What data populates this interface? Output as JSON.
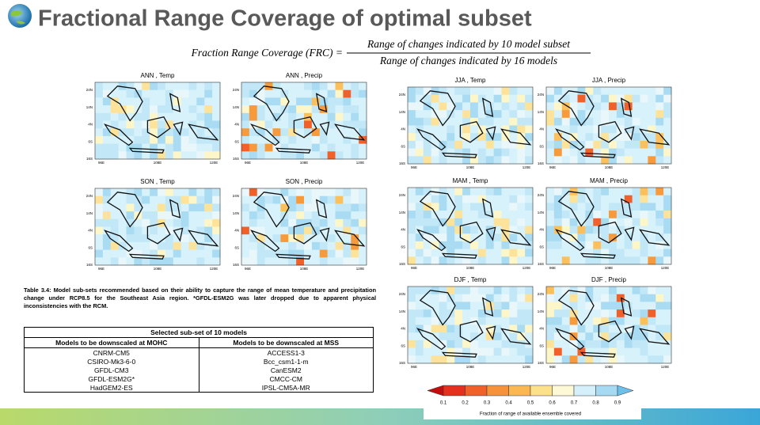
{
  "header": {
    "title": "Fractional Range Coverage of optimal subset"
  },
  "formula": {
    "lhs": "Fraction Range Coverage (FRC) =",
    "numerator": "Range of changes indicated by 10 model subset",
    "denominator": "Range of changes indicated by 16 models"
  },
  "panels": [
    {
      "title": "ANN , Temp"
    },
    {
      "title": "ANN , Precip"
    },
    {
      "title": "SON , Temp"
    },
    {
      "title": "SON , Precip"
    },
    {
      "title": "JJA , Temp"
    },
    {
      "title": "JJA , Precip"
    },
    {
      "title": "MAM , Temp"
    },
    {
      "title": "MAM , Precip"
    },
    {
      "title": "DJF , Temp"
    },
    {
      "title": "DJF , Precip"
    }
  ],
  "lat_labels": [
    "24N",
    "14N",
    "4N",
    "6S",
    "16S"
  ],
  "lon_labels": [
    "96E",
    "108E",
    "120E"
  ],
  "caption": "Table 3.4: Model sub-sets recommended based on their ability to capture the range of mean temperature and precipitation change under RCP8.5 for the Southeast Asia region. *GFDL-ESM2G was later dropped due to apparent physical inconsistencies with the RCM.",
  "table": {
    "title": "Selected sub-set of 10 models",
    "headers": [
      "Models to be downscaled at MOHC",
      "Models to be downscaled at MSS"
    ],
    "rows": [
      [
        "CNRM-CM5",
        "ACCESS1-3"
      ],
      [
        "CSIRO-Mk3-6-0",
        "Bcc_csm1-1-m"
      ],
      [
        "GFDL-CM3",
        "CanESM2"
      ],
      [
        "GFDL-ESM2G*",
        "CMCC-CM"
      ],
      [
        "HadGEM2-ES",
        "IPSL-CM5A-MR"
      ]
    ]
  },
  "colorbar": {
    "ticks": [
      0.1,
      0.2,
      0.3,
      0.4,
      0.5,
      0.6,
      0.7,
      0.8,
      0.9
    ],
    "label": "Fraction of range of available ensemble covered"
  }
}
